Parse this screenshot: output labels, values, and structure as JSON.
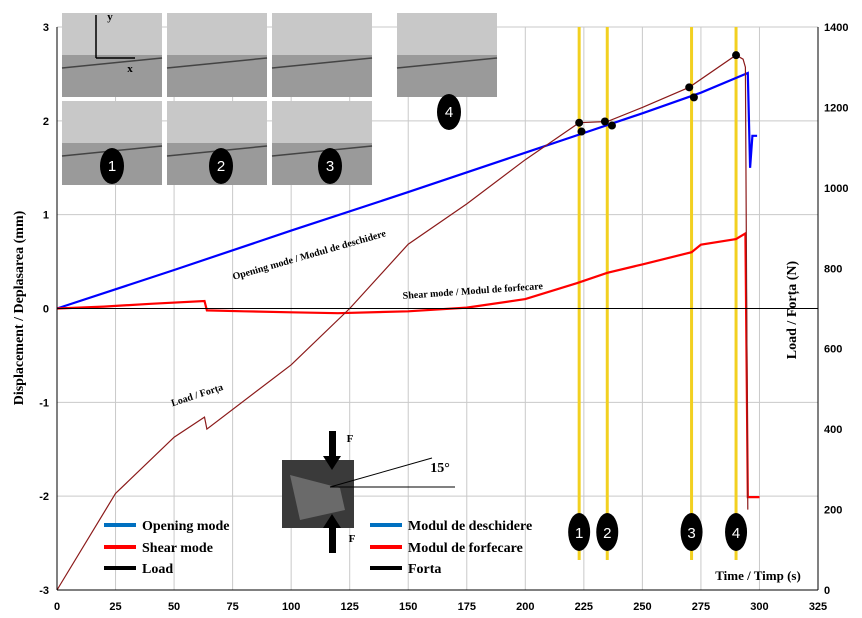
{
  "chart_data": {
    "type": "line",
    "xlabel": "Time / Timp (s)",
    "ylabel": "Displacement / Deplasarea (mm)",
    "y2label": "Load / Forța (N)",
    "xlim": [
      0,
      325
    ],
    "ylim": [
      -3,
      3
    ],
    "y2lim": [
      0,
      1400
    ],
    "x_ticks": [
      0,
      25,
      50,
      75,
      100,
      125,
      150,
      175,
      200,
      225,
      250,
      275,
      300,
      325
    ],
    "y_ticks": [
      -3,
      -2,
      -1,
      0,
      1,
      2,
      3
    ],
    "y2_ticks": [
      0,
      200,
      400,
      600,
      800,
      1000,
      1200,
      1400
    ],
    "grid": true,
    "series": [
      {
        "name": "Opening mode",
        "axis": "left",
        "color": "#0000ff",
        "x": [
          0,
          50,
          100,
          150,
          200,
          225,
          250,
          275,
          295,
          296,
          297,
          299
        ],
        "y": [
          0,
          0.41,
          0.83,
          1.24,
          1.66,
          1.87,
          2.08,
          2.3,
          2.51,
          1.5,
          1.84,
          1.84
        ]
      },
      {
        "name": "Shear mode",
        "axis": "left",
        "color": "#ff0000",
        "x": [
          0,
          20,
          40,
          63,
          64,
          80,
          100,
          120,
          150,
          175,
          200,
          222,
          235,
          250,
          271,
          275,
          290,
          294,
          295,
          297,
          300
        ],
        "y": [
          0,
          0.02,
          0.05,
          0.08,
          -0.02,
          -0.03,
          -0.04,
          -0.05,
          -0.03,
          0.01,
          0.1,
          0.27,
          0.38,
          0.47,
          0.6,
          0.68,
          0.74,
          0.8,
          -2.01,
          -2.01,
          -2.01
        ]
      },
      {
        "name": "Load",
        "axis": "right",
        "color": "#8b1a1a",
        "x": [
          0,
          25,
          50,
          63,
          64,
          100,
          125,
          150,
          175,
          200,
          223,
          235,
          250,
          270,
          290,
          293,
          294,
          295
        ],
        "y": [
          0,
          240,
          380,
          430,
          400,
          560,
          700,
          860,
          960,
          1070,
          1162,
          1165,
          1200,
          1250,
          1330,
          1320,
          1300,
          200
        ]
      }
    ],
    "annotations": {
      "opening": "Opening mode / Modul de deschidere",
      "shear": "Shear mode / Modul de forfecare",
      "load": "Load / Forța",
      "angle": "15°",
      "force": "F"
    },
    "markers": {
      "lines": [
        {
          "label": "1",
          "x": 223
        },
        {
          "label": "2",
          "x": 235
        },
        {
          "label": "3",
          "x": 271
        },
        {
          "label": "4",
          "x": 290
        }
      ],
      "inset_labels": [
        "1",
        "2",
        "3",
        "4"
      ],
      "inset_axes": [
        "y",
        "x"
      ]
    },
    "legend": [
      {
        "label": "Opening mode",
        "color": "#0070c0"
      },
      {
        "label": "Shear mode",
        "color": "#ff0000"
      },
      {
        "label": "Load",
        "color": "#000000"
      },
      {
        "label": "Modul de deschidere",
        "color": "#0070c0"
      },
      {
        "label": "Modul de forfecare",
        "color": "#ff0000"
      },
      {
        "label": "Forta",
        "color": "#000000"
      }
    ]
  }
}
